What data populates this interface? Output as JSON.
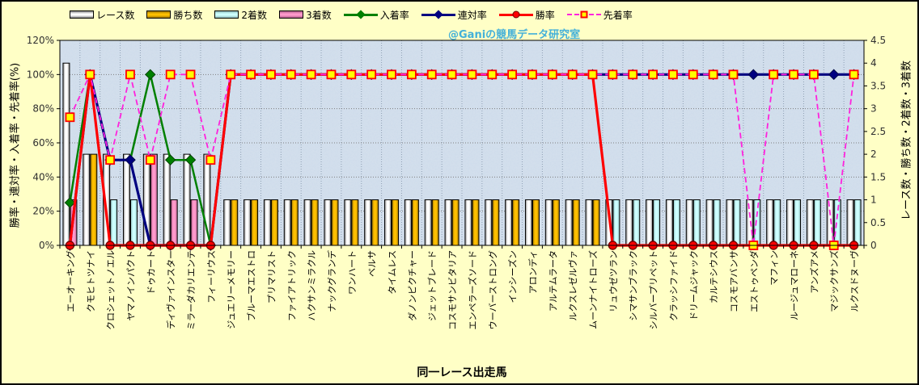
{
  "watermark": "@Ganiの競馬データ研究室",
  "axes": {
    "left_title": "勝率・連対率・入着率・先着率(%)",
    "right_title": "レース数・勝ち数・2着数・3着数",
    "x_title": "同一レース出走馬",
    "left_tick_values": [
      0,
      20,
      40,
      60,
      80,
      100,
      120
    ],
    "left_tick_labels": [
      "0%",
      "20%",
      "40%",
      "60%",
      "80%",
      "100%",
      "120%"
    ],
    "right_tick_values": [
      0,
      0.5,
      1,
      1.5,
      2,
      2.5,
      3,
      3.5,
      4,
      4.5
    ],
    "right_tick_labels": [
      "0",
      "0.5",
      "1",
      "1.5",
      "2",
      "2.5",
      "3",
      "3.5",
      "4",
      "4.5"
    ]
  },
  "legend": [
    {
      "label": "レース数",
      "type": "bar",
      "fill": "#ffffff",
      "edge": "#8a8a8a"
    },
    {
      "label": "勝ち数",
      "type": "bar",
      "fill": "#ffc000",
      "edge": "#a07800"
    },
    {
      "label": "2着数",
      "type": "bar",
      "fill": "#ccffff",
      "edge": "#8fbcbc"
    },
    {
      "label": "3着数",
      "type": "bar",
      "fill": "#ff99cc",
      "edge": "#b25f8b"
    },
    {
      "label": "入着率",
      "type": "line",
      "color": "#008000",
      "marker": "diamond",
      "marker_fill": "#008000",
      "dashed": false
    },
    {
      "label": "連対率",
      "type": "line",
      "color": "#000080",
      "marker": "diamond",
      "marker_fill": "#000080",
      "dashed": false
    },
    {
      "label": "勝率",
      "type": "line",
      "color": "#ff0000",
      "marker": "circle",
      "marker_fill": "#ff0000",
      "dashed": false
    },
    {
      "label": "先着率",
      "type": "line",
      "color": "#ff22dd",
      "marker": "square",
      "marker_fill": "#ffff00",
      "dashed": true
    }
  ],
  "chart_data": {
    "type": "combo",
    "title": "",
    "xlabel": "同一レース出走馬",
    "left_axis": {
      "label": "勝率・連対率・入着率・先着率(%)",
      "min": 0,
      "max": 120,
      "step": 20,
      "unit": "%"
    },
    "right_axis": {
      "label": "レース数・勝ち数・2着数・3着数",
      "min": 0,
      "max": 4.5,
      "step": 0.5
    },
    "grid": true,
    "legend_position": "top",
    "categories": [
      "エーオーキング",
      "クモヒトツナイ",
      "クロシェットノエル",
      "ヤマノインパクト",
      "ドゥカート",
      "ディヴァインスター",
      "ミラーダカリエンテ",
      "フィーリウス",
      "ジュエリーメモリー",
      "ブルーマエストロ",
      "プリマリスト",
      "ファイアトリック",
      "ハクサンミラクル",
      "ナックグランデ",
      "ワンハート",
      "ベルサ",
      "タイムレス",
      "ダノンピクチャー",
      "ジェットブレード",
      "コスモサンビタリア",
      "エンペラーズソード",
      "ウーバーストロング",
      "インシーズン",
      "アロンディ",
      "アルテムラータ",
      "ルクスレゼルヴァ",
      "ムーンナイトローズ",
      "リュウゼツラン",
      "シマサンブラック",
      "シルバープリペット",
      "クラッシファイド",
      "ドリームジャック",
      "カルテシウス",
      "コスモアバンサ",
      "エストゥペンダ",
      "マフィン",
      "ルージュマローネ",
      "アンズアメ",
      "マジックサンズ",
      "ルクスドヌーヴ"
    ],
    "bar_series": [
      {
        "name": "レース数",
        "axis": "right",
        "fill": "#ffffff",
        "edge": "#8a8a8a",
        "values": [
          4,
          2,
          2,
          2,
          2,
          2,
          2,
          2,
          1,
          1,
          1,
          1,
          1,
          1,
          1,
          1,
          1,
          1,
          1,
          1,
          1,
          1,
          1,
          1,
          1,
          1,
          1,
          1,
          1,
          1,
          1,
          1,
          1,
          1,
          1,
          1,
          1,
          1,
          1,
          1
        ]
      },
      {
        "name": "勝ち数",
        "axis": "right",
        "fill": "#ffc000",
        "edge": "#a07800",
        "values": [
          0,
          2,
          0,
          0,
          0,
          0,
          0,
          0,
          1,
          1,
          1,
          1,
          1,
          1,
          1,
          1,
          1,
          1,
          1,
          1,
          1,
          1,
          1,
          1,
          1,
          1,
          1,
          0,
          0,
          0,
          0,
          0,
          0,
          0,
          0,
          0,
          0,
          0,
          0,
          0
        ]
      },
      {
        "name": "2着数",
        "axis": "right",
        "fill": "#ccffff",
        "edge": "#8fbcbc",
        "values": [
          0,
          0,
          1,
          1,
          0,
          0,
          0,
          0,
          0,
          0,
          0,
          0,
          0,
          0,
          0,
          0,
          0,
          0,
          0,
          0,
          0,
          0,
          0,
          0,
          0,
          0,
          0,
          1,
          1,
          1,
          1,
          1,
          1,
          1,
          1,
          1,
          1,
          1,
          1,
          1
        ]
      },
      {
        "name": "3着数",
        "axis": "right",
        "fill": "#ff99cc",
        "edge": "#b25f8b",
        "values": [
          1,
          0,
          0,
          0,
          2,
          1,
          1,
          0,
          0,
          0,
          0,
          0,
          0,
          0,
          0,
          0,
          0,
          0,
          0,
          0,
          0,
          0,
          0,
          0,
          0,
          0,
          0,
          0,
          0,
          0,
          0,
          0,
          0,
          0,
          0,
          0,
          0,
          0,
          0,
          0
        ]
      }
    ],
    "line_series": [
      {
        "name": "入着率",
        "axis": "left",
        "color": "#008000",
        "width": 2.5,
        "dashed": false,
        "marker": "diamond",
        "marker_fill": "#008000",
        "marker_stroke": "#004000",
        "values": [
          25,
          100,
          50,
          50,
          100,
          50,
          50,
          0,
          100,
          100,
          100,
          100,
          100,
          100,
          100,
          100,
          100,
          100,
          100,
          100,
          100,
          100,
          100,
          100,
          100,
          100,
          100,
          100,
          100,
          100,
          100,
          100,
          100,
          100,
          100,
          100,
          100,
          100,
          100,
          100
        ]
      },
      {
        "name": "連対率",
        "axis": "left",
        "color": "#000080",
        "width": 3.2,
        "dashed": false,
        "marker": "diamond",
        "marker_fill": "#000080",
        "marker_stroke": "#000050",
        "values": [
          0,
          100,
          50,
          50,
          0,
          0,
          0,
          0,
          100,
          100,
          100,
          100,
          100,
          100,
          100,
          100,
          100,
          100,
          100,
          100,
          100,
          100,
          100,
          100,
          100,
          100,
          100,
          100,
          100,
          100,
          100,
          100,
          100,
          100,
          100,
          100,
          100,
          100,
          100,
          100
        ]
      },
      {
        "name": "勝率",
        "axis": "left",
        "color": "#ff0000",
        "width": 3.2,
        "dashed": false,
        "marker": "circle",
        "marker_fill": "#ff0000",
        "marker_stroke": "#7a0000",
        "values": [
          0,
          100,
          0,
          0,
          0,
          0,
          0,
          0,
          100,
          100,
          100,
          100,
          100,
          100,
          100,
          100,
          100,
          100,
          100,
          100,
          100,
          100,
          100,
          100,
          100,
          100,
          100,
          0,
          0,
          0,
          0,
          0,
          0,
          0,
          0,
          0,
          0,
          0,
          0,
          0
        ]
      },
      {
        "name": "先着率",
        "axis": "left",
        "color": "#ff22dd",
        "width": 1.8,
        "dashed": true,
        "marker": "square",
        "marker_fill": "#ffff00",
        "marker_stroke": "#ff0000",
        "values": [
          75,
          100,
          50,
          100,
          50,
          100,
          100,
          50,
          100,
          100,
          100,
          100,
          100,
          100,
          100,
          100,
          100,
          100,
          100,
          100,
          100,
          100,
          100,
          100,
          100,
          100,
          100,
          100,
          100,
          100,
          100,
          100,
          100,
          100,
          0,
          100,
          100,
          100,
          0,
          100
        ]
      }
    ]
  }
}
